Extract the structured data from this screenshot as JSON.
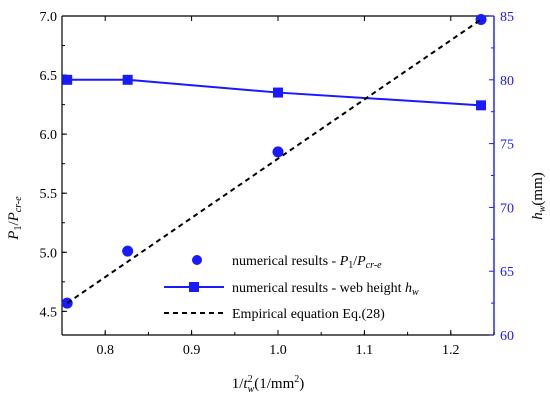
{
  "chart_data": {
    "type": "line",
    "xlabel": "1/t_w^2(1/mm^2)",
    "ylabel_left": "P1/Pcr-e",
    "ylabel_right": "h_w(mm)",
    "xlim": [
      0.75,
      1.25
    ],
    "ylim_left": [
      4.3,
      7.0
    ],
    "ylim_right": [
      60,
      85
    ],
    "x_ticks": [
      "0.8",
      "0.9",
      "1.0",
      "1.1",
      "1.2"
    ],
    "y_left_ticks": [
      "4.5",
      "5.0",
      "5.5",
      "6.0",
      "6.5",
      "7.0"
    ],
    "y_right_ticks": [
      "60",
      "65",
      "70",
      "75",
      "80",
      "85"
    ],
    "grid": false,
    "legend_position": "bottom-center",
    "series": [
      {
        "name": "numerical results - P1/Pcr-e",
        "axis": "left",
        "style": "markers-circle",
        "color": "#1a1aff",
        "x": [
          0.756,
          0.826,
          1.0,
          1.235
        ],
        "y": [
          4.57,
          5.01,
          5.85,
          6.97
        ]
      },
      {
        "name": "numerical results - web height hw",
        "axis": "right",
        "style": "line-square",
        "color": "#1a1aff",
        "x": [
          0.756,
          0.826,
          1.0,
          1.235
        ],
        "y": [
          80,
          80,
          79,
          78
        ]
      },
      {
        "name": "Empirical equation Eq.(28)",
        "axis": "left",
        "style": "dashed-line",
        "color": "#000000",
        "x": [
          0.756,
          1.235
        ],
        "y": [
          4.57,
          6.97
        ]
      }
    ]
  }
}
